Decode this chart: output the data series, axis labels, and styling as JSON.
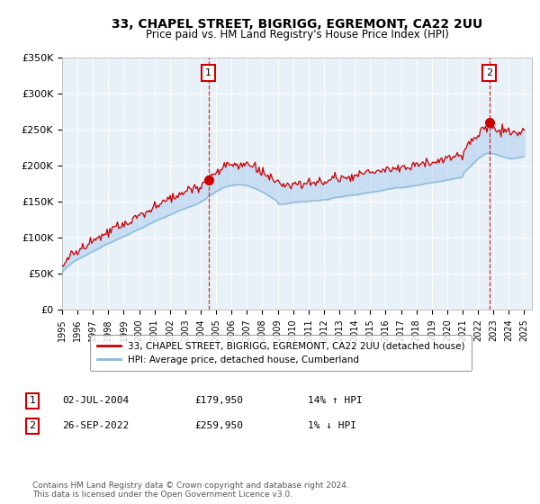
{
  "title": "33, CHAPEL STREET, BIGRIGG, EGREMONT, CA22 2UU",
  "subtitle": "Price paid vs. HM Land Registry's House Price Index (HPI)",
  "ylim": [
    0,
    350000
  ],
  "yticks": [
    0,
    50000,
    100000,
    150000,
    200000,
    250000,
    300000,
    350000
  ],
  "ytick_labels": [
    "£0",
    "£50K",
    "£100K",
    "£150K",
    "£200K",
    "£250K",
    "£300K",
    "£350K"
  ],
  "hpi_color": "#88bbdd",
  "price_color": "#cc0000",
  "fill_color": "#aaccee",
  "background_color": "#e8f0f8",
  "marker1_date_num": 2004.5,
  "marker1_price": 179950,
  "marker1_label": "02-JUL-2004",
  "marker1_hpi_pct": "14% ↑ HPI",
  "marker2_date_num": 2022.73,
  "marker2_price": 259950,
  "marker2_label": "26-SEP-2022",
  "marker2_hpi_pct": "1% ↓ HPI",
  "legend_price_label": "33, CHAPEL STREET, BIGRIGG, EGREMONT, CA22 2UU (detached house)",
  "legend_hpi_label": "HPI: Average price, detached house, Cumberland",
  "footnote": "Contains HM Land Registry data © Crown copyright and database right 2024.\nThis data is licensed under the Open Government Licence v3.0.",
  "xstart": 1995,
  "xend": 2025,
  "seed": 42
}
